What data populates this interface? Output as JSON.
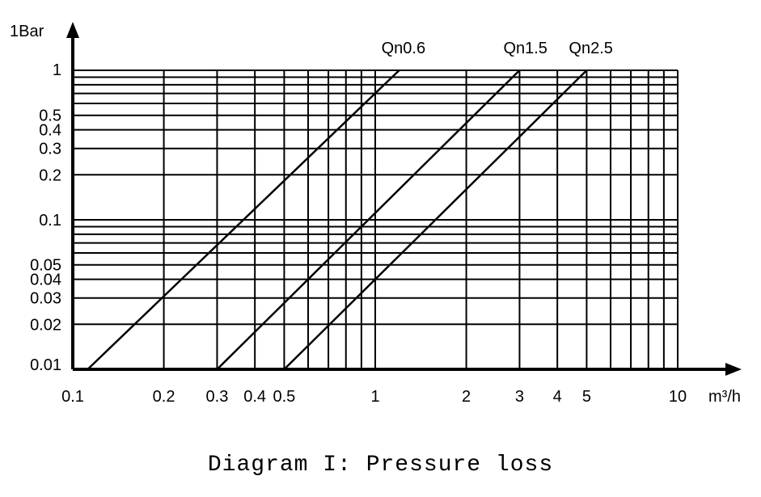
{
  "chart_data": {
    "type": "line",
    "caption": "Diagram I: Pressure loss",
    "y_axis_label": "1Bar",
    "x_axis_label": "m³/h",
    "x_scale": "log",
    "y_scale": "log",
    "xlim": [
      0.1,
      10
    ],
    "ylim": [
      0.01,
      1
    ],
    "grid": true,
    "x_ticks": [
      0.1,
      0.2,
      0.3,
      0.4,
      0.5,
      1,
      2,
      3,
      4,
      5,
      10
    ],
    "x_tick_labels": [
      "0.1",
      "0.2",
      "0.3",
      "0.4",
      "0.5",
      "1",
      "2",
      "3",
      "4",
      "5",
      "10"
    ],
    "y_ticks": [
      0.01,
      0.02,
      0.03,
      0.04,
      0.05,
      0.1,
      0.2,
      0.3,
      0.4,
      0.5,
      1
    ],
    "y_tick_labels": [
      "0.01",
      "0.02",
      "0.03",
      "0.04",
      "0.05",
      "0.1",
      "0.2",
      "0.3",
      "0.4",
      "0.5",
      "1"
    ],
    "x_grid": [
      0.2,
      0.3,
      0.4,
      0.5,
      0.6,
      0.7,
      0.8,
      0.9,
      1,
      2,
      3,
      4,
      5,
      6,
      7,
      8,
      9,
      10
    ],
    "y_grid": [
      0.02,
      0.03,
      0.04,
      0.05,
      0.06,
      0.07,
      0.08,
      0.09,
      0.1,
      0.2,
      0.3,
      0.4,
      0.5,
      0.6,
      0.7,
      0.8,
      0.9,
      1
    ],
    "series": [
      {
        "name": "Qn0.6",
        "x": [
          0.112,
          1.2
        ],
        "y": [
          0.01,
          1
        ]
      },
      {
        "name": "Qn1.5",
        "x": [
          0.3,
          3.0
        ],
        "y": [
          0.01,
          1
        ]
      },
      {
        "name": "Qn2.5",
        "x": [
          0.5,
          5.0
        ],
        "y": [
          0.01,
          1
        ]
      }
    ]
  }
}
